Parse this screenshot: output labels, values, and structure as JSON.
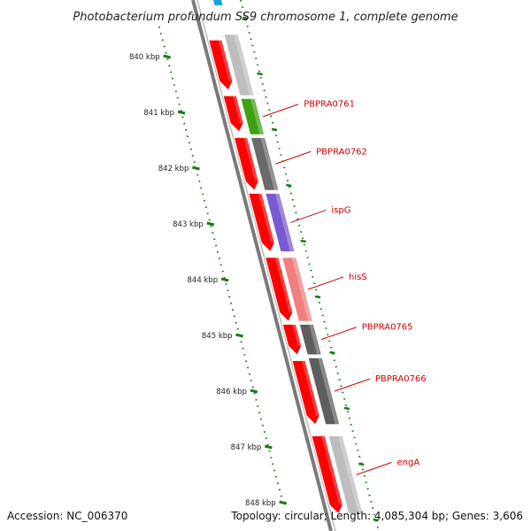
{
  "title": "Photobacterium profundum SS9 chromosome 1, complete genome",
  "footer": {
    "accession": "Accession: NC_006370",
    "summary": "Topology: circular; Length: 4,085,304 bp; Genes: 3,606"
  },
  "colors": {
    "background": "#ffffff",
    "backbone": "#7a7a7a",
    "dotted_track": "#1a7a1a",
    "label_text": "#cc0000",
    "label_line": "#cc0000",
    "forward_cds": "#ff0000",
    "reverse_track_default": "#c8c8c8"
  },
  "scale": {
    "unit": "kbp",
    "ticks": [
      {
        "kbp": 840,
        "label": "840 kbp"
      },
      {
        "kbp": 841,
        "label": "841 kbp"
      },
      {
        "kbp": 842,
        "label": "842 kbp"
      },
      {
        "kbp": 843,
        "label": "843 kbp"
      },
      {
        "kbp": 844,
        "label": "844 kbp"
      },
      {
        "kbp": 845,
        "label": "845 kbp"
      },
      {
        "kbp": 846,
        "label": "846 kbp"
      },
      {
        "kbp": 847,
        "label": "847 kbp"
      },
      {
        "kbp": 848,
        "label": "848 kbp"
      }
    ]
  },
  "forward_features": [
    {
      "start": 839.7,
      "end": 840.6
    },
    {
      "start": 840.7,
      "end": 841.35
    },
    {
      "start": 841.45,
      "end": 842.4
    },
    {
      "start": 842.45,
      "end": 843.5
    },
    {
      "start": 843.6,
      "end": 844.75
    },
    {
      "start": 844.8,
      "end": 845.35
    },
    {
      "start": 845.45,
      "end": 846.6
    },
    {
      "start": 846.8,
      "end": 848.2
    }
  ],
  "reverse_features": [
    {
      "start": 839.6,
      "end": 840.7,
      "color": "#bdbdbd",
      "name": ""
    },
    {
      "start": 840.75,
      "end": 841.4,
      "color": "#3fa012",
      "name": "PBPRA0761"
    },
    {
      "start": 841.45,
      "end": 842.4,
      "color": "#6a6a6a",
      "name": "PBPRA0762"
    },
    {
      "start": 842.45,
      "end": 843.5,
      "color": "#7a5ad0",
      "name": "ispG"
    },
    {
      "start": 843.6,
      "end": 844.75,
      "color": "#f08080",
      "name": "hisS"
    },
    {
      "start": 844.8,
      "end": 845.35,
      "color": "#5e5e5e",
      "name": "PBPRA0765"
    },
    {
      "start": 845.4,
      "end": 846.6,
      "color": "#5e5e5e",
      "name": "PBPRA0766"
    },
    {
      "start": 846.8,
      "end": 848.2,
      "color": "#bdbdbd",
      "name": "engA"
    }
  ],
  "top_edge_feature_color": "#1aa0e0"
}
